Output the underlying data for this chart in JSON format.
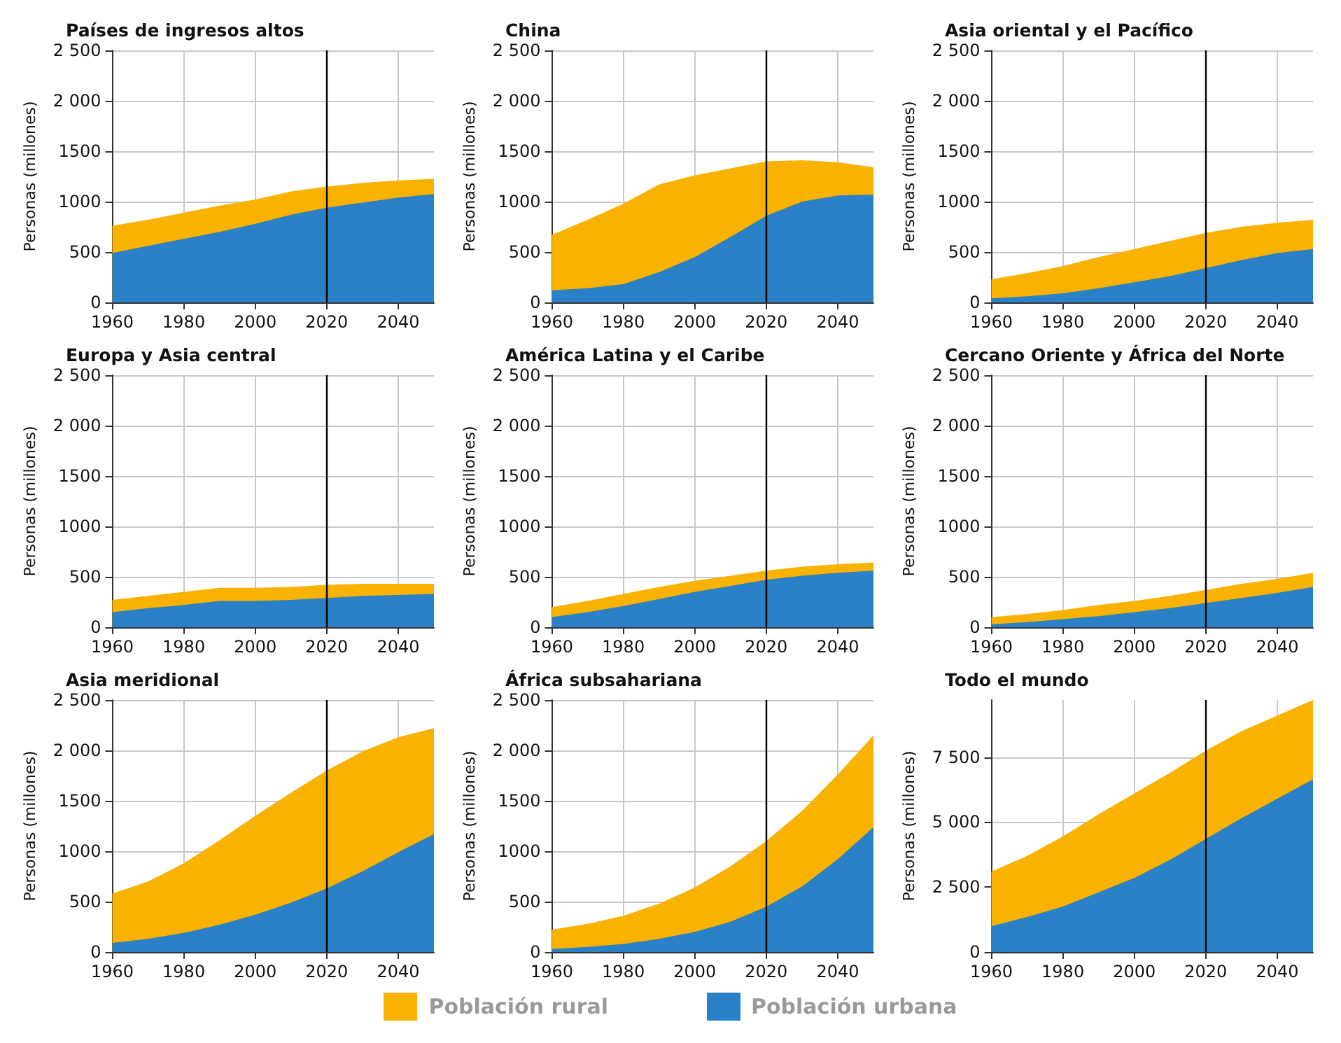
{
  "chart_data": [
    {
      "type": "area",
      "title": "Países de ingresos altos",
      "ylabel": "Personas (millones)",
      "stacked": true,
      "grid": true,
      "legend": false,
      "x": [
        1960,
        1970,
        1980,
        1990,
        2000,
        2010,
        2020,
        2030,
        2040,
        2050
      ],
      "xlim": [
        1960,
        2050
      ],
      "xticks": [
        1960,
        1980,
        2000,
        2020,
        2040
      ],
      "ylim": [
        0,
        2500
      ],
      "yticks": [
        0,
        500,
        1000,
        1500,
        {
          "value": 2000,
          "label": "2 000"
        },
        {
          "value": 2500,
          "label": "2 500"
        }
      ],
      "ref_lines": [
        {
          "axis": "x",
          "value": 2020,
          "label": null,
          "color": "#000000"
        }
      ],
      "series": [
        {
          "color": "#2a81c7",
          "values": [
            490,
            560,
            630,
            700,
            780,
            870,
            940,
            990,
            1040,
            1075
          ]
        },
        {
          "color": "#f9b200",
          "values": [
            270,
            260,
            260,
            260,
            240,
            230,
            210,
            195,
            170,
            150
          ]
        }
      ]
    },
    {
      "type": "area",
      "title": "China",
      "ylabel": "Personas (millones)",
      "stacked": true,
      "grid": true,
      "legend": false,
      "x": [
        1960,
        1970,
        1980,
        1990,
        2000,
        2010,
        2020,
        2030,
        2040,
        2050
      ],
      "xlim": [
        1960,
        2050
      ],
      "xticks": [
        1960,
        1980,
        2000,
        2020,
        2040
      ],
      "ylim": [
        0,
        2500
      ],
      "yticks": [
        0,
        500,
        1000,
        1500,
        {
          "value": 2000,
          "label": "2 000"
        },
        {
          "value": 2500,
          "label": "2 500"
        }
      ],
      "ref_lines": [
        {
          "axis": "x",
          "value": 2020,
          "label": null,
          "color": "#000000"
        }
      ],
      "series": [
        {
          "color": "#2a81c7",
          "values": [
            120,
            140,
            180,
            300,
            450,
            650,
            860,
            1000,
            1060,
            1070
          ]
        },
        {
          "color": "#f9b200",
          "values": [
            550,
            680,
            800,
            870,
            810,
            680,
            540,
            410,
            330,
            270
          ]
        }
      ]
    },
    {
      "type": "area",
      "title": "Asia oriental y el Pacífico",
      "ylabel": "Personas (millones)",
      "stacked": true,
      "grid": true,
      "legend": false,
      "x": [
        1960,
        1970,
        1980,
        1990,
        2000,
        2010,
        2020,
        2030,
        2040,
        2050
      ],
      "xlim": [
        1960,
        2050
      ],
      "xticks": [
        1960,
        1980,
        2000,
        2020,
        2040
      ],
      "ylim": [
        0,
        2500
      ],
      "yticks": [
        0,
        500,
        1000,
        1500,
        {
          "value": 2000,
          "label": "2 000"
        },
        {
          "value": 2500,
          "label": "2 500"
        }
      ],
      "ref_lines": [
        {
          "axis": "x",
          "value": 2020,
          "label": null,
          "color": "#000000"
        }
      ],
      "series": [
        {
          "color": "#2a81c7",
          "values": [
            40,
            60,
            90,
            140,
            200,
            260,
            340,
            420,
            490,
            530
          ]
        },
        {
          "color": "#f9b200",
          "values": [
            190,
            230,
            270,
            310,
            330,
            350,
            350,
            330,
            300,
            290
          ]
        }
      ]
    },
    {
      "type": "area",
      "title": "Europa y Asia central",
      "ylabel": "Personas (millones)",
      "stacked": true,
      "grid": true,
      "legend": false,
      "x": [
        1960,
        1970,
        1980,
        1990,
        2000,
        2010,
        2020,
        2030,
        2040,
        2050
      ],
      "xlim": [
        1960,
        2050
      ],
      "xticks": [
        1960,
        1980,
        2000,
        2020,
        2040
      ],
      "ylim": [
        0,
        2500
      ],
      "yticks": [
        0,
        500,
        1000,
        1500,
        {
          "value": 2000,
          "label": "2 000"
        },
        {
          "value": 2500,
          "label": "2 500"
        }
      ],
      "ref_lines": [
        {
          "axis": "x",
          "value": 2020,
          "label": null,
          "color": "#000000"
        }
      ],
      "series": [
        {
          "color": "#2a81c7",
          "values": [
            150,
            190,
            220,
            260,
            260,
            270,
            290,
            310,
            320,
            330
          ]
        },
        {
          "color": "#f9b200",
          "values": [
            120,
            120,
            130,
            130,
            130,
            130,
            130,
            120,
            110,
            100
          ]
        }
      ]
    },
    {
      "type": "area",
      "title": "América Latina y el Caribe",
      "ylabel": "Personas (millones)",
      "stacked": true,
      "grid": true,
      "legend": false,
      "x": [
        1960,
        1970,
        1980,
        1990,
        2000,
        2010,
        2020,
        2030,
        2040,
        2050
      ],
      "xlim": [
        1960,
        2050
      ],
      "xticks": [
        1960,
        1980,
        2000,
        2020,
        2040
      ],
      "ylim": [
        0,
        2500
      ],
      "yticks": [
        0,
        500,
        1000,
        1500,
        {
          "value": 2000,
          "label": "2 000"
        },
        {
          "value": 2500,
          "label": "2 500"
        }
      ],
      "ref_lines": [
        {
          "axis": "x",
          "value": 2020,
          "label": null,
          "color": "#000000"
        }
      ],
      "series": [
        {
          "color": "#2a81c7",
          "values": [
            100,
            150,
            210,
            280,
            350,
            410,
            470,
            510,
            540,
            560
          ]
        },
        {
          "color": "#f9b200",
          "values": [
            100,
            110,
            120,
            120,
            110,
            100,
            90,
            90,
            85,
            80
          ]
        }
      ]
    },
    {
      "type": "area",
      "title": "Cercano Oriente y África del Norte",
      "ylabel": "Personas (millones)",
      "stacked": true,
      "grid": true,
      "legend": false,
      "x": [
        1960,
        1970,
        1980,
        1990,
        2000,
        2010,
        2020,
        2030,
        2040,
        2050
      ],
      "xlim": [
        1960,
        2050
      ],
      "xticks": [
        1960,
        1980,
        2000,
        2020,
        2040
      ],
      "ylim": [
        0,
        2500
      ],
      "yticks": [
        0,
        500,
        1000,
        1500,
        {
          "value": 2000,
          "label": "2 000"
        },
        {
          "value": 2500,
          "label": "2 500"
        }
      ],
      "ref_lines": [
        {
          "axis": "x",
          "value": 2020,
          "label": null,
          "color": "#000000"
        }
      ],
      "series": [
        {
          "color": "#2a81c7",
          "values": [
            30,
            50,
            80,
            110,
            150,
            190,
            240,
            290,
            340,
            400
          ]
        },
        {
          "color": "#f9b200",
          "values": [
            70,
            80,
            90,
            110,
            110,
            120,
            130,
            140,
            140,
            140
          ]
        }
      ]
    },
    {
      "type": "area",
      "title": "Asia meridional",
      "ylabel": "Personas (millones)",
      "stacked": true,
      "grid": true,
      "legend": false,
      "x": [
        1960,
        1970,
        1980,
        1990,
        2000,
        2010,
        2020,
        2030,
        2040,
        2050
      ],
      "xlim": [
        1960,
        2050
      ],
      "xticks": [
        1960,
        1980,
        2000,
        2020,
        2040
      ],
      "ylim": [
        0,
        2500
      ],
      "yticks": [
        0,
        500,
        1000,
        1500,
        {
          "value": 2000,
          "label": "2 000"
        },
        {
          "value": 2500,
          "label": "2 500"
        }
      ],
      "ref_lines": [
        {
          "axis": "x",
          "value": 2020,
          "label": null,
          "color": "#000000"
        }
      ],
      "series": [
        {
          "color": "#2a81c7",
          "values": [
            90,
            130,
            190,
            270,
            370,
            490,
            630,
            800,
            990,
            1170
          ]
        },
        {
          "color": "#f9b200",
          "values": [
            490,
            570,
            690,
            840,
            980,
            1090,
            1170,
            1190,
            1140,
            1050
          ]
        }
      ]
    },
    {
      "type": "area",
      "title": "África subsahariana",
      "ylabel": "Personas (millones)",
      "stacked": true,
      "grid": true,
      "legend": false,
      "x": [
        1960,
        1970,
        1980,
        1990,
        2000,
        2010,
        2020,
        2030,
        2040,
        2050
      ],
      "xlim": [
        1960,
        2050
      ],
      "xticks": [
        1960,
        1980,
        2000,
        2020,
        2040
      ],
      "ylim": [
        0,
        2500
      ],
      "yticks": [
        0,
        500,
        1000,
        1500,
        {
          "value": 2000,
          "label": "2 000"
        },
        {
          "value": 2500,
          "label": "2 500"
        }
      ],
      "ref_lines": [
        {
          "axis": "x",
          "value": 2020,
          "label": null,
          "color": "#000000"
        }
      ],
      "series": [
        {
          "color": "#2a81c7",
          "values": [
            30,
            50,
            80,
            130,
            200,
            300,
            450,
            650,
            920,
            1240
          ]
        },
        {
          "color": "#f9b200",
          "values": [
            190,
            230,
            280,
            350,
            440,
            550,
            650,
            750,
            840,
            910
          ]
        }
      ]
    },
    {
      "type": "area",
      "title": "Todo el mundo",
      "ylabel": "Personas (millones)",
      "stacked": true,
      "grid": true,
      "legend": "bottom",
      "x": [
        1960,
        1970,
        1980,
        1990,
        2000,
        2010,
        2020,
        2030,
        2040,
        2050
      ],
      "xlim": [
        1960,
        2050
      ],
      "xticks": [
        1960,
        1980,
        2000,
        2020,
        2040
      ],
      "ylim": [
        0,
        9700
      ],
      "yticks": [
        0,
        {
          "value": 2500,
          "label": "2 500"
        },
        {
          "value": 5000,
          "label": "5 000"
        },
        {
          "value": 7500,
          "label": "7 500"
        }
      ],
      "ref_lines": [
        {
          "axis": "x",
          "value": 2020,
          "label": null,
          "color": "#000000"
        }
      ],
      "series": [
        {
          "name": "Población urbana",
          "color": "#2a81c7",
          "values": [
            1000,
            1350,
            1750,
            2300,
            2850,
            3550,
            4350,
            5150,
            5900,
            6650
          ]
        },
        {
          "name": "Población rural",
          "color": "#f9b200",
          "values": [
            2100,
            2350,
            2700,
            3000,
            3250,
            3350,
            3400,
            3350,
            3200,
            3050
          ]
        }
      ]
    }
  ]
}
